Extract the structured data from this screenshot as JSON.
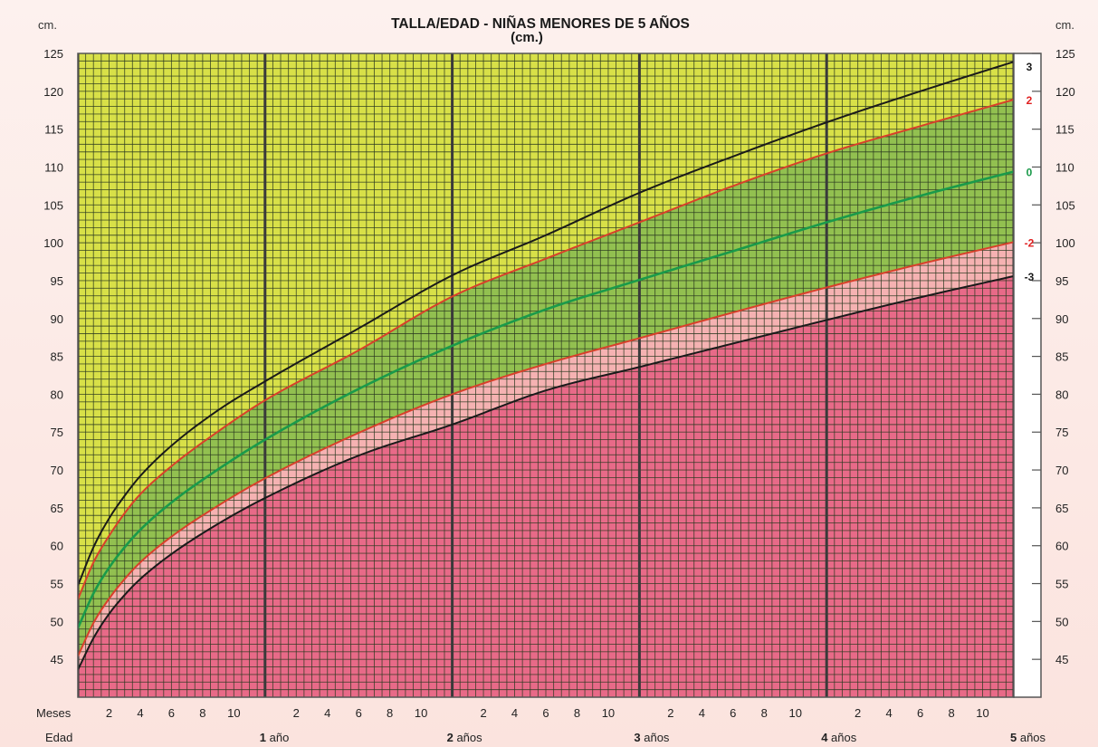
{
  "colors": {
    "above_3sd": "#d8e048",
    "green_band": "#92c050",
    "light_pink_band": "#f5b2b2",
    "low_band": "#e86a88",
    "grid_line": "#2c3a20",
    "curve_black": "#1a1a1a",
    "curve_red": "#d8402a",
    "curve_green": "#1a9a4a"
  },
  "chart_data": {
    "type": "line",
    "title": "TALLA/EDAD - NIÑAS MENORES DE 5 AÑOS",
    "subtitle": "(cm.)",
    "ylabel_left": "cm.",
    "ylabel_right": "cm.",
    "ylim": [
      40,
      125
    ],
    "xlim": [
      0,
      60
    ],
    "x_unit": "meses",
    "y_ticks": [
      45,
      50,
      55,
      60,
      65,
      70,
      75,
      80,
      85,
      90,
      95,
      100,
      105,
      110,
      115,
      120,
      125
    ],
    "row_labels": {
      "months": "Meses",
      "age": "Edad"
    },
    "month_ticks": [
      "2",
      "4",
      "6",
      "8",
      "10"
    ],
    "year_labels": [
      {
        "num": "1",
        "word": "año"
      },
      {
        "num": "2",
        "word": "años"
      },
      {
        "num": "3",
        "word": "años"
      },
      {
        "num": "4",
        "word": "años"
      },
      {
        "num": "5",
        "word": "años"
      }
    ],
    "x": [
      0,
      1,
      2,
      3,
      4,
      6,
      9,
      12,
      18,
      24,
      30,
      36,
      42,
      48,
      54,
      60
    ],
    "series": [
      {
        "name": "3",
        "color": "#1a1a1a",
        "values": [
          54.7,
          59.8,
          63.6,
          66.6,
          69.2,
          73.2,
          77.9,
          81.7,
          88.7,
          95.7,
          101.0,
          106.6,
          111.4,
          115.9,
          120.0,
          123.9
        ]
      },
      {
        "name": "2",
        "color": "#d8402a",
        "values": [
          52.9,
          57.8,
          61.3,
          64.3,
          66.8,
          70.5,
          75.1,
          79.2,
          85.8,
          92.9,
          97.9,
          102.7,
          107.5,
          111.8,
          115.4,
          118.9
        ]
      },
      {
        "name": "0",
        "color": "#1a9a4a",
        "values": [
          49.1,
          53.7,
          57.1,
          59.8,
          62.1,
          65.7,
          70.1,
          74.0,
          80.7,
          86.4,
          91.2,
          95.1,
          98.9,
          102.7,
          106.2,
          109.4
        ]
      },
      {
        "name": "-2",
        "color": "#d8402a",
        "values": [
          45.4,
          49.8,
          53.0,
          55.6,
          57.8,
          61.2,
          65.3,
          68.9,
          74.9,
          80.0,
          84.0,
          87.4,
          90.8,
          94.1,
          97.2,
          100.1
        ]
      },
      {
        "name": "-3",
        "color": "#1a1a1a",
        "values": [
          43.6,
          47.8,
          51.0,
          53.5,
          55.6,
          58.9,
          62.9,
          66.3,
          71.9,
          76.0,
          80.5,
          83.6,
          86.7,
          89.8,
          92.8,
          95.6
        ]
      }
    ]
  }
}
